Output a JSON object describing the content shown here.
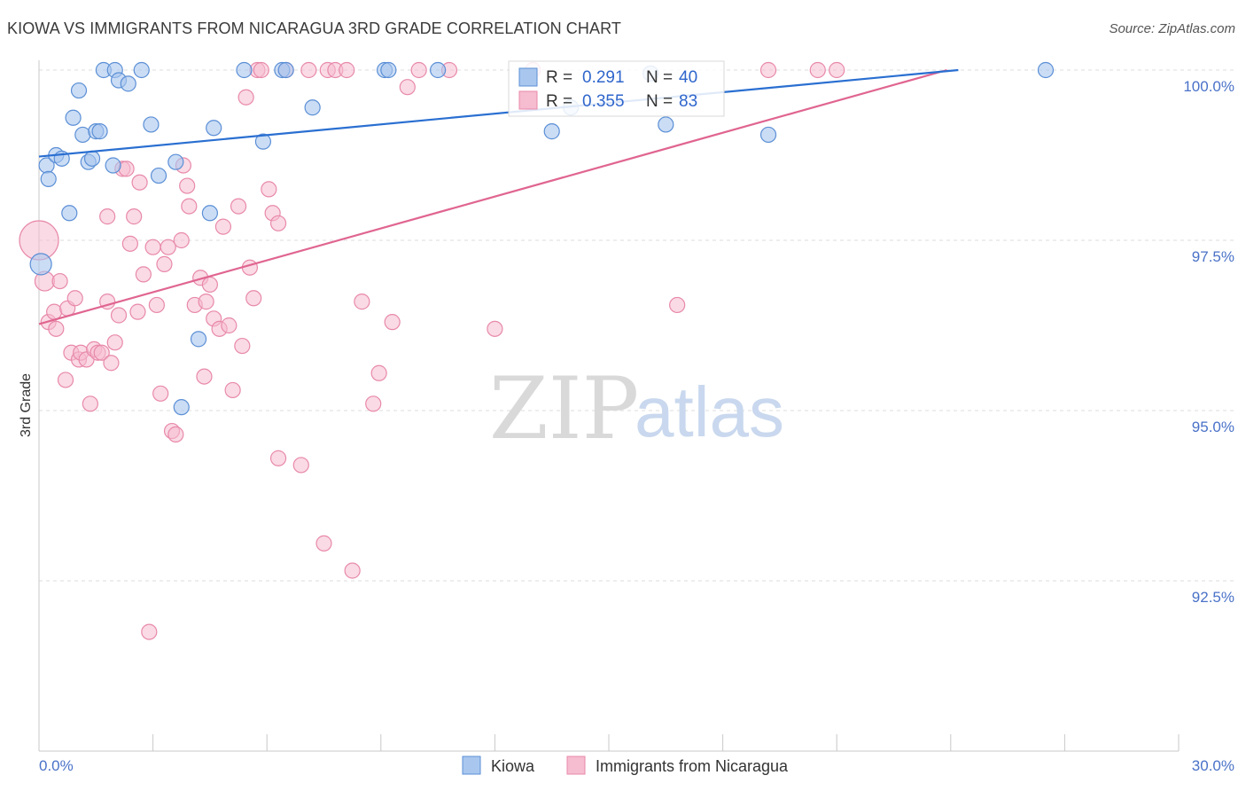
{
  "header": {
    "title": "KIOWA VS IMMIGRANTS FROM NICARAGUA 3RD GRADE CORRELATION CHART",
    "source": "Source: ZipAtlas.com"
  },
  "watermark": {
    "zip": "ZIP",
    "atlas": "atlas"
  },
  "colors": {
    "kiowa_fill": "#a9c7ee",
    "kiowa_stroke": "#5b8fd6",
    "kiowa_line": "#2a6fd1",
    "nicaragua_fill": "#f6bcd0",
    "nicaragua_stroke": "#e889aa",
    "nicaragua_line": "#e06590",
    "tick_text": "#4a72c8"
  },
  "legend": {
    "kiowa": {
      "r_label": "R =",
      "r_value": "0.291",
      "n_label": "N =",
      "n_value": "40"
    },
    "nicaragua": {
      "r_label": "R =",
      "r_value": "0.355",
      "n_label": "N =",
      "n_value": "83"
    }
  },
  "chart_data": {
    "type": "scatter",
    "title": "KIOWA VS IMMIGRANTS FROM NICARAGUA 3RD GRADE CORRELATION CHART",
    "xlabel": "",
    "ylabel": "3rd Grade",
    "xlim": [
      0,
      30
    ],
    "ylim": [
      90.0,
      100.5
    ],
    "x_tick_labels": [
      "0.0%",
      "30.0%"
    ],
    "y_ticks": [
      92.5,
      95.0,
      97.5,
      100.0
    ],
    "y_tick_labels": [
      "92.5%",
      "95.0%",
      "97.5%",
      "100.0%"
    ],
    "grid": true,
    "series": [
      {
        "name": "Kiowa",
        "trend": {
          "x": [
            0,
            24.2
          ],
          "y": [
            98.73,
            100.0
          ]
        },
        "points": [
          [
            0.2,
            98.6
          ],
          [
            0.25,
            98.4
          ],
          [
            0.45,
            98.75
          ],
          [
            0.6,
            98.7
          ],
          [
            0.8,
            97.9
          ],
          [
            1.05,
            99.7
          ],
          [
            0.9,
            99.3
          ],
          [
            1.15,
            99.05
          ],
          [
            1.3,
            98.65
          ],
          [
            1.4,
            98.7
          ],
          [
            1.5,
            99.1
          ],
          [
            1.6,
            99.1
          ],
          [
            1.7,
            100.0
          ],
          [
            1.95,
            98.6
          ],
          [
            2.0,
            100.0
          ],
          [
            2.1,
            99.85
          ],
          [
            2.35,
            99.8
          ],
          [
            2.7,
            100.0
          ],
          [
            2.95,
            99.2
          ],
          [
            3.15,
            98.45
          ],
          [
            3.6,
            98.65
          ],
          [
            3.75,
            95.05
          ],
          [
            4.2,
            96.05
          ],
          [
            4.5,
            97.9
          ],
          [
            4.6,
            99.15
          ],
          [
            5.4,
            100.0
          ],
          [
            5.9,
            98.95
          ],
          [
            6.4,
            100.0
          ],
          [
            6.5,
            100.0
          ],
          [
            7.2,
            99.45
          ],
          [
            9.1,
            100.0
          ],
          [
            9.2,
            100.0
          ],
          [
            10.5,
            100.0
          ],
          [
            13.5,
            99.1
          ],
          [
            14.0,
            99.45
          ],
          [
            16.1,
            99.95
          ],
          [
            16.5,
            99.2
          ],
          [
            19.2,
            99.05
          ],
          [
            26.5,
            100.0
          ],
          [
            0.05,
            97.15
          ]
        ]
      },
      {
        "name": "Immigrants from Nicaragua",
        "trend": {
          "x": [
            0,
            23.9
          ],
          "y": [
            96.27,
            100.0
          ]
        },
        "points": [
          [
            0.0,
            97.5
          ],
          [
            0.15,
            96.9
          ],
          [
            0.25,
            96.3
          ],
          [
            0.4,
            96.45
          ],
          [
            0.45,
            96.2
          ],
          [
            0.55,
            96.9
          ],
          [
            0.7,
            95.45
          ],
          [
            0.75,
            96.5
          ],
          [
            0.85,
            95.85
          ],
          [
            0.95,
            96.65
          ],
          [
            1.05,
            95.75
          ],
          [
            1.1,
            95.85
          ],
          [
            1.25,
            95.75
          ],
          [
            1.35,
            95.1
          ],
          [
            1.45,
            95.9
          ],
          [
            1.55,
            95.85
          ],
          [
            1.65,
            95.85
          ],
          [
            1.8,
            96.6
          ],
          [
            1.8,
            97.85
          ],
          [
            1.9,
            95.7
          ],
          [
            2.0,
            96.0
          ],
          [
            2.1,
            96.4
          ],
          [
            2.2,
            98.55
          ],
          [
            2.3,
            98.55
          ],
          [
            2.4,
            97.45
          ],
          [
            2.5,
            97.85
          ],
          [
            2.6,
            96.45
          ],
          [
            2.65,
            98.35
          ],
          [
            2.75,
            97.0
          ],
          [
            2.9,
            91.75
          ],
          [
            3.0,
            97.4
          ],
          [
            3.1,
            96.55
          ],
          [
            3.2,
            95.25
          ],
          [
            3.3,
            97.15
          ],
          [
            3.4,
            97.4
          ],
          [
            3.5,
            94.7
          ],
          [
            3.6,
            94.65
          ],
          [
            3.75,
            97.5
          ],
          [
            3.8,
            98.6
          ],
          [
            3.9,
            98.3
          ],
          [
            3.95,
            98.0
          ],
          [
            4.1,
            96.55
          ],
          [
            4.25,
            96.95
          ],
          [
            4.35,
            95.5
          ],
          [
            4.4,
            96.6
          ],
          [
            4.5,
            96.85
          ],
          [
            4.6,
            96.35
          ],
          [
            4.75,
            96.2
          ],
          [
            4.85,
            97.7
          ],
          [
            5.0,
            96.25
          ],
          [
            5.1,
            95.3
          ],
          [
            5.25,
            98.0
          ],
          [
            5.35,
            95.95
          ],
          [
            5.45,
            99.6
          ],
          [
            5.55,
            97.1
          ],
          [
            5.65,
            96.65
          ],
          [
            5.75,
            100.0
          ],
          [
            5.85,
            100.0
          ],
          [
            6.05,
            98.25
          ],
          [
            6.15,
            97.9
          ],
          [
            6.3,
            97.75
          ],
          [
            6.3,
            94.3
          ],
          [
            6.5,
            100.0
          ],
          [
            6.9,
            94.2
          ],
          [
            7.1,
            100.0
          ],
          [
            7.5,
            93.05
          ],
          [
            7.6,
            100.0
          ],
          [
            7.8,
            100.0
          ],
          [
            8.1,
            100.0
          ],
          [
            8.25,
            92.65
          ],
          [
            8.5,
            96.6
          ],
          [
            8.8,
            95.1
          ],
          [
            8.95,
            95.55
          ],
          [
            9.3,
            96.3
          ],
          [
            9.7,
            99.75
          ],
          [
            10.0,
            100.0
          ],
          [
            10.8,
            100.0
          ],
          [
            12.0,
            96.2
          ],
          [
            13.0,
            100.0
          ],
          [
            16.8,
            96.55
          ],
          [
            19.2,
            100.0
          ],
          [
            20.5,
            100.0
          ],
          [
            21.0,
            100.0
          ]
        ]
      }
    ],
    "legend_entries": [
      "Kiowa",
      "Immigrants from Nicaragua"
    ]
  }
}
